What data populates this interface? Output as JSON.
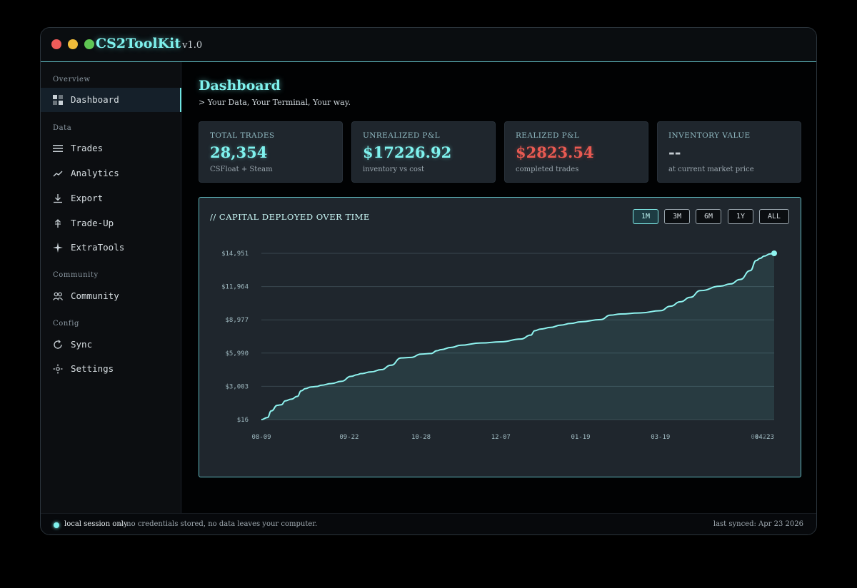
{
  "app": {
    "title": "CS2ToolKit",
    "version": "v1.0"
  },
  "sidebar": {
    "sections": [
      {
        "label": "Overview",
        "items": [
          {
            "label": "Dashboard",
            "icon": "grid-icon",
            "active": true
          }
        ]
      },
      {
        "label": "Data",
        "items": [
          {
            "label": "Trades",
            "icon": "list-icon"
          },
          {
            "label": "Analytics",
            "icon": "trend-icon"
          },
          {
            "label": "Export",
            "icon": "download-icon"
          },
          {
            "label": "Trade-Up",
            "icon": "arrow-up-icon"
          }
        ]
      },
      {
        "label": "Community",
        "items": [
          {
            "label": "Community",
            "icon": "people-icon"
          }
        ]
      },
      {
        "label": "Config",
        "items": [
          {
            "label": "Sync",
            "icon": "sync-icon"
          },
          {
            "label": "Settings",
            "icon": "gear-icon"
          }
        ]
      }
    ],
    "extra_item": {
      "label": "ExtraTools",
      "icon": "sparkle-icon"
    }
  },
  "page": {
    "title": "Dashboard",
    "subtitle": "> Your Data, Your Terminal, Your way."
  },
  "stats": [
    {
      "label": "TOTAL TRADES",
      "value": "28,354",
      "sub": "CSFloat + Steam",
      "color": "#7ff2ee"
    },
    {
      "label": "UNREALIZED P&L",
      "value": "$17226.92",
      "sub": "inventory vs cost",
      "color": "#7ff2ee"
    },
    {
      "label": "REALIZED P&L",
      "value": "$2823.54",
      "sub": "completed trades",
      "color": "#e95a52"
    },
    {
      "label": "INVENTORY VALUE",
      "value": "--",
      "sub": "at current market price",
      "color": "#c5ccd1"
    }
  ],
  "chart_panel": {
    "title": "// CAPITAL DEPLOYED OVER TIME",
    "ranges": [
      "1M",
      "3M",
      "6M",
      "1Y",
      "ALL"
    ],
    "active_range": "1M"
  },
  "chart_data": {
    "type": "area",
    "title": "// CAPITAL DEPLOYED OVER TIME",
    "yticks": [
      16,
      3003,
      5990,
      8977,
      11964,
      14951
    ],
    "ytick_labels": [
      "$16",
      "$3,003",
      "$5,990",
      "$8,977",
      "$11,964",
      "$14,951"
    ],
    "ylim": [
      16,
      14951
    ],
    "xlim": [
      0,
      257
    ],
    "xticks": [
      0,
      44,
      80,
      120,
      160,
      200,
      257
    ],
    "xtick_labels": [
      "08-09",
      "09-22",
      "10-28",
      "12-07",
      "01-19",
      "03-19",
      "04-23"
    ],
    "extra_xtick_label": {
      "x": 255,
      "label": "04-22"
    },
    "series": [
      {
        "name": "Capital deployed",
        "x": [
          0,
          3,
          5,
          8,
          10,
          12,
          15,
          18,
          20,
          22,
          25,
          28,
          30,
          35,
          40,
          45,
          48,
          50,
          55,
          60,
          65,
          70,
          75,
          80,
          85,
          88,
          90,
          95,
          100,
          110,
          120,
          130,
          135,
          137,
          140,
          145,
          150,
          155,
          160,
          170,
          175,
          180,
          190,
          200,
          205,
          210,
          215,
          220,
          230,
          235,
          240,
          245,
          248,
          250,
          252,
          255,
          257
        ],
        "values": [
          16,
          200,
          800,
          1300,
          1350,
          1700,
          1850,
          2100,
          2600,
          2800,
          2950,
          3000,
          3100,
          3250,
          3450,
          3900,
          4050,
          4150,
          4300,
          4500,
          4900,
          5550,
          5600,
          5900,
          5950,
          6200,
          6300,
          6500,
          6700,
          6900,
          7000,
          7250,
          7600,
          8000,
          8150,
          8300,
          8500,
          8650,
          8800,
          9000,
          9400,
          9500,
          9600,
          9800,
          10200,
          10600,
          11000,
          11600,
          12000,
          12200,
          12600,
          13400,
          14300,
          14500,
          14700,
          14900,
          14951
        ]
      }
    ]
  },
  "status": {
    "strong": "local session only",
    "text": "— no credentials stored, no data leaves your computer.",
    "right": "last synced: Apr 23 2026"
  }
}
